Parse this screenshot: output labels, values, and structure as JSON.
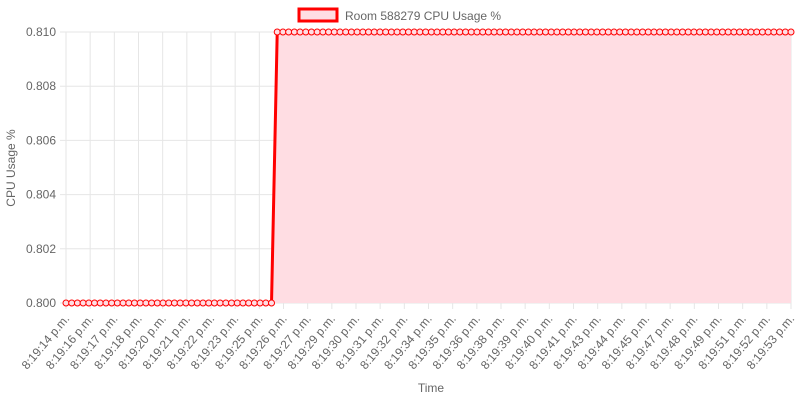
{
  "chart_data": {
    "type": "area",
    "legend": {
      "label": "Room 588279 CPU Usage %",
      "position": "top"
    },
    "xlabel": "Time",
    "ylabel": "CPU Usage %",
    "ylim": [
      0.8,
      0.81
    ],
    "yticks": [
      "0.810",
      "0.808",
      "0.806",
      "0.804",
      "0.802",
      "0.800"
    ],
    "grid": true,
    "colors": {
      "line": "#ff0000",
      "fill": "#ffdde3",
      "grid": "#e6e6e6",
      "text": "#666666"
    },
    "x_labels": [
      "8:19:14 p.m.",
      "8:19:16 p.m.",
      "8:19:17 p.m.",
      "8:19:18 p.m.",
      "8:19:20 p.m.",
      "8:19:21 p.m.",
      "8:19:22 p.m.",
      "8:19:23 p.m.",
      "8:19:25 p.m.",
      "8:19:26 p.m.",
      "8:19:27 p.m.",
      "8:19:29 p.m.",
      "8:19:30 p.m.",
      "8:19:31 p.m.",
      "8:19:32 p.m.",
      "8:19:34 p.m.",
      "8:19:35 p.m.",
      "8:19:36 p.m.",
      "8:19:38 p.m.",
      "8:19:39 p.m.",
      "8:19:40 p.m.",
      "8:19:41 p.m.",
      "8:19:43 p.m.",
      "8:19:44 p.m.",
      "8:19:45 p.m.",
      "8:19:47 p.m.",
      "8:19:48 p.m.",
      "8:19:49 p.m.",
      "8:19:51 p.m.",
      "8:19:52 p.m.",
      "8:19:53 p.m."
    ],
    "series": [
      {
        "name": "Room 588279 CPU Usage %",
        "points_total": 128,
        "switch_index": 37,
        "values_before": 0.8,
        "values_after": 0.81
      }
    ]
  }
}
